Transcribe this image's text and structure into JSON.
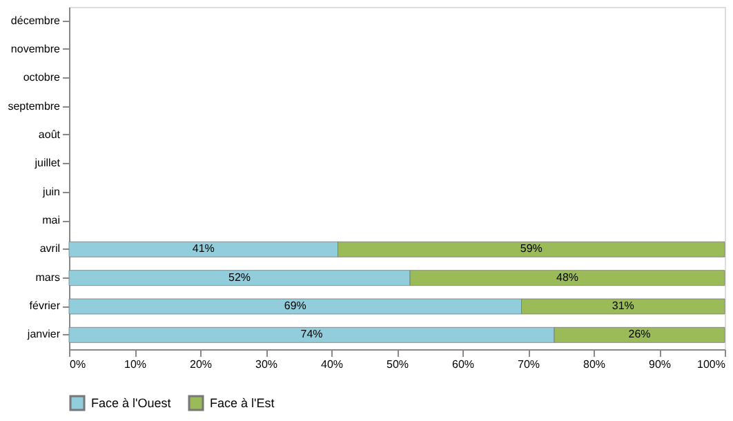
{
  "chart_data": {
    "type": "bar",
    "orientation": "horizontal",
    "stacked": true,
    "categories": [
      "décembre",
      "novembre",
      "octobre",
      "septembre",
      "août",
      "juillet",
      "juin",
      "mai",
      "avril",
      "mars",
      "février",
      "janvier"
    ],
    "series": [
      {
        "name": "Face à l'Ouest",
        "color": "#92cddc",
        "values": [
          null,
          null,
          null,
          null,
          null,
          null,
          null,
          null,
          41,
          52,
          69,
          74
        ],
        "value_labels": [
          null,
          null,
          null,
          null,
          null,
          null,
          null,
          null,
          "41%",
          "52%",
          "69%",
          "74%"
        ]
      },
      {
        "name": "Face à l'Est",
        "color": "#9bbb59",
        "values": [
          null,
          null,
          null,
          null,
          null,
          null,
          null,
          null,
          59,
          48,
          31,
          26
        ],
        "value_labels": [
          null,
          null,
          null,
          null,
          null,
          null,
          null,
          null,
          "59%",
          "48%",
          "31%",
          "26%"
        ]
      }
    ],
    "xlim": [
      0,
      100
    ],
    "xticks": [
      {
        "value": 0,
        "label": "0%"
      },
      {
        "value": 10,
        "label": "10%"
      },
      {
        "value": 20,
        "label": "20%"
      },
      {
        "value": 30,
        "label": "30%"
      },
      {
        "value": 40,
        "label": "40%"
      },
      {
        "value": 50,
        "label": "50%"
      },
      {
        "value": 60,
        "label": "60%"
      },
      {
        "value": 70,
        "label": "70%"
      },
      {
        "value": 80,
        "label": "80%"
      },
      {
        "value": 90,
        "label": "90%"
      },
      {
        "value": 100,
        "label": "100%"
      }
    ],
    "grid": false,
    "legend": "bottom"
  }
}
